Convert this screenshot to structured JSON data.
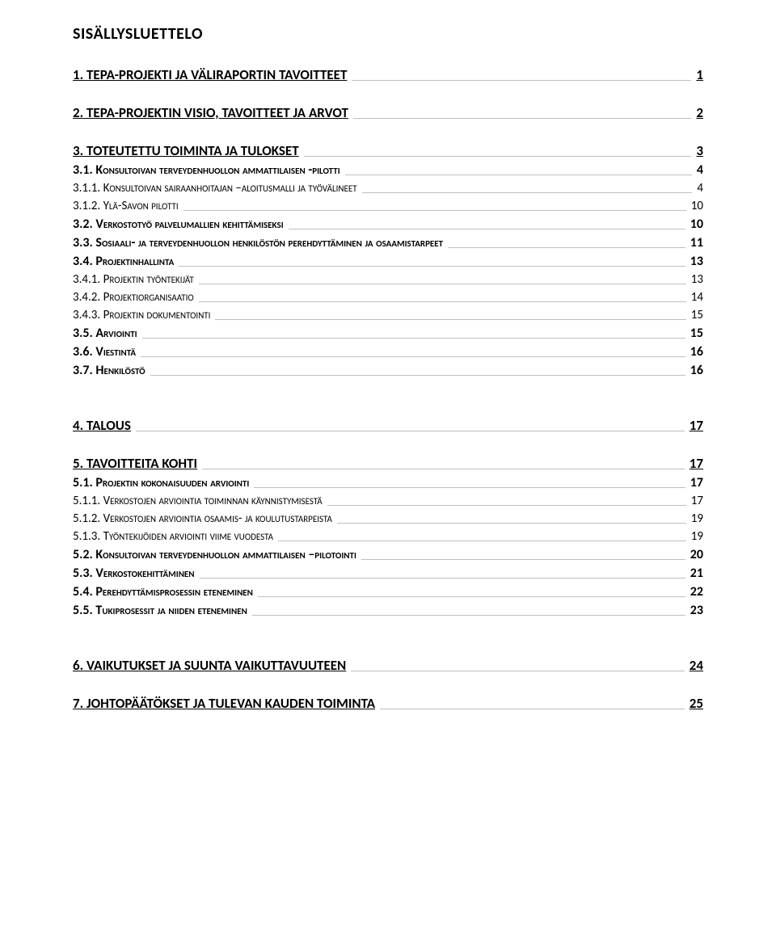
{
  "title": "SISÄLLYSLUETTELO",
  "toc": [
    {
      "level": 1,
      "num": "1.",
      "text": "TEPA-PROJEKTI JA VÄLIRAPORTIN TAVOITTEET",
      "page": "1"
    },
    {
      "level": 1,
      "num": "2.",
      "text": "TEPA-PROJEKTIN VISIO, TAVOITTEET JA ARVOT",
      "page": "2"
    },
    {
      "level": 1,
      "num": "3.",
      "text": "TOTEUTETTU TOIMINTA JA TULOKSET",
      "page": "3"
    },
    {
      "level": 2,
      "num": "3.1.",
      "text": "Konsultoivan terveydenhuollon ammattilaisen -pilotti",
      "page": "4"
    },
    {
      "level": 3,
      "num": "3.1.1.",
      "text": "Konsultoivan sairaanhoitajan –aloitusmalli ja työvälineet",
      "page": "4"
    },
    {
      "level": 3,
      "num": "3.1.2.",
      "text": "Ylä-Savon pilotti",
      "page": "10"
    },
    {
      "level": 2,
      "num": "3.2.",
      "text": "Verkostotyö palvelumallien kehittämiseksi",
      "page": "10"
    },
    {
      "level": 2,
      "num": "3.3.",
      "text": "Sosiaali- ja terveydenhuollon henkilöstön perehdyttäminen ja osaamistarpeet",
      "page": "11"
    },
    {
      "level": 2,
      "num": "3.4.",
      "text": "Projektinhallinta",
      "page": "13"
    },
    {
      "level": 3,
      "num": "3.4.1.",
      "text": "Projektin työntekijät",
      "page": "13"
    },
    {
      "level": 3,
      "num": "3.4.2.",
      "text": "Projektiorganisaatio",
      "page": "14"
    },
    {
      "level": 3,
      "num": "3.4.3.",
      "text": "Projektin dokumentointi",
      "page": "15"
    },
    {
      "level": 2,
      "num": "3.5.",
      "text": "Arviointi",
      "page": "15"
    },
    {
      "level": 2,
      "num": "3.6.",
      "text": "Viestintä",
      "page": "16"
    },
    {
      "level": 2,
      "num": "3.7.",
      "text": "Henkilöstö",
      "page": "16"
    },
    {
      "level": 1,
      "num": "4.",
      "text": "TALOUS",
      "page": "17"
    },
    {
      "level": 1,
      "num": "5.",
      "text": "TAVOITTEITA KOHTI",
      "page": "17"
    },
    {
      "level": 2,
      "num": "5.1.",
      "text": "Projektin kokonaisuuden arviointi",
      "page": "17"
    },
    {
      "level": 3,
      "num": "5.1.1.",
      "text": "Verkostojen arviointia toiminnan käynnistymisestä",
      "page": "17"
    },
    {
      "level": 3,
      "num": "5.1.2.",
      "text": "Verkostojen arviointia osaamis- ja koulutustarpeista",
      "page": "19"
    },
    {
      "level": 3,
      "num": "5.1.3.",
      "text": "Työntekijöiden arviointi viime vuodesta",
      "page": "19"
    },
    {
      "level": 2,
      "num": "5.2.",
      "text": "Konsultoivan terveydenhuollon ammattilaisen –pilotointi",
      "page": "20"
    },
    {
      "level": 2,
      "num": "5.3.",
      "text": "Verkostokehittäminen",
      "page": "21"
    },
    {
      "level": 2,
      "num": "5.4.",
      "text": "Perehdyttämisprosessin eteneminen",
      "page": "22"
    },
    {
      "level": 2,
      "num": "5.5.",
      "text": "Tukiprosessit ja niiden eteneminen",
      "page": "23"
    },
    {
      "level": 1,
      "num": "6.",
      "text": "VAIKUTUKSET JA SUUNTA VAIKUTTAVUUTEEN",
      "page": "24"
    },
    {
      "level": 1,
      "num": "7.",
      "text": "JOHTOPÄÄTÖKSET JA TULEVAN KAUDEN TOIMINTA",
      "page": "25"
    }
  ]
}
